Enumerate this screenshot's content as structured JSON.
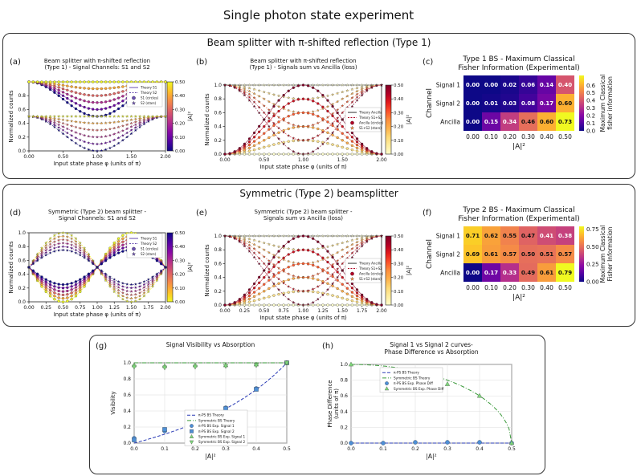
{
  "page_title": "Single photon state experiment",
  "sections": {
    "type1": "Beam splitter with π-shifted reflection (Type 1)",
    "type2": "Symmetric (Type 2) beamsplitter"
  },
  "chart_data": [
    {
      "id": "a",
      "panel_label": "(a)",
      "type": "scatter",
      "title": "Beam splitter with π-shifted reflection\n(Type 1) - Signal Channels: S1 and S2",
      "xlabel": "Input state phase φ (units of π)",
      "ylabel": "Normalized counts",
      "xlim": [
        0,
        2
      ],
      "ylim": [
        0,
        1
      ],
      "xticks": [
        "0.00",
        "0.50",
        "1.00",
        "1.50",
        "2.00"
      ],
      "yticks": [
        "0.0",
        "0.2",
        "0.4",
        "0.6",
        "0.8"
      ],
      "legend": [
        "Theory S1",
        "Theory S2",
        "S1 (circles)",
        "S2 (stars)"
      ],
      "colorbar": {
        "label": "|A|²",
        "ticks": [
          "0.00",
          "0.10",
          "0.20",
          "0.30",
          "0.40",
          "0.50"
        ]
      },
      "absorption_levels": [
        0,
        0.1,
        0.2,
        0.3,
        0.4,
        0.5
      ]
    },
    {
      "id": "b",
      "panel_label": "(b)",
      "type": "scatter",
      "title": "Beam splitter with π-shifted reflection\n(Type 1) - Signals sum vs Ancilla (loss)",
      "xlabel": "Input state phase φ (units of π)",
      "ylabel": "Normalized counts",
      "xlim": [
        0,
        2
      ],
      "ylim": [
        0,
        1
      ],
      "xticks": [
        "0.00",
        "0.50",
        "1.00",
        "1.50",
        "2.00"
      ],
      "yticks": [
        "0.0",
        "0.2",
        "0.4",
        "0.6",
        "0.8",
        "1.0"
      ],
      "legend": [
        "Theory Ancilla",
        "Theory S1+S2",
        "Ancilla (circles)",
        "S1+S2 (stars)"
      ],
      "colorbar": {
        "label": "|A|²",
        "ticks": [
          "0.00",
          "0.10",
          "0.20",
          "0.30",
          "0.40",
          "0.50"
        ]
      },
      "absorption_levels": [
        0,
        0.1,
        0.2,
        0.3,
        0.4,
        0.5
      ]
    },
    {
      "id": "c",
      "panel_label": "(c)",
      "type": "heatmap",
      "title": "Type 1 BS - Maximum Classical\nFisher Information (Experimental)",
      "xlabel": "|A|²",
      "ylabel": "Channel",
      "x": [
        "0.00",
        "0.10",
        "0.20",
        "0.30",
        "0.40",
        "0.50"
      ],
      "rows": [
        "Signal 1",
        "Signal 2",
        "Ancilla"
      ],
      "values": [
        [
          0.0,
          0.0,
          0.02,
          0.06,
          0.14,
          0.4
        ],
        [
          0.0,
          0.01,
          0.03,
          0.08,
          0.17,
          0.6
        ],
        [
          0.0,
          0.15,
          0.34,
          0.46,
          0.6,
          0.73
        ]
      ],
      "vmax": 0.73,
      "colorbar": {
        "label": "Maximum Classical\nfisher information",
        "ticks": [
          "0.0",
          "0.1",
          "0.2",
          "0.3",
          "0.4",
          "0.5",
          "0.6"
        ]
      }
    },
    {
      "id": "d",
      "panel_label": "(d)",
      "type": "scatter",
      "title": "Symmetric (Type 2) beam splitter -\nSignal Channels: S1 and S2",
      "xlabel": "Input state phase φ (units of π)",
      "ylabel": "Normalized counts",
      "xlim": [
        0,
        2
      ],
      "ylim": [
        0,
        1
      ],
      "xticks": [
        "0.00",
        "0.25",
        "0.50",
        "0.75",
        "1.00",
        "1.25",
        "1.50",
        "1.75",
        "2.00"
      ],
      "yticks": [
        "0.0",
        "0.2",
        "0.4",
        "0.6",
        "0.8",
        "1.0"
      ],
      "legend": [
        "Theory S1",
        "Theory S2",
        "S1 (circles)",
        "S2 (stars)"
      ],
      "colorbar": {
        "label": "|A|²",
        "ticks": [
          "0.00",
          "0.10",
          "0.20",
          "0.30",
          "0.40",
          "0.50"
        ]
      },
      "absorption_levels": [
        0,
        0.1,
        0.2,
        0.3,
        0.4,
        0.5
      ]
    },
    {
      "id": "e",
      "panel_label": "(e)",
      "type": "scatter",
      "title": "Symmetric (Type 2) beam splitter -\nSignals sum vs Ancilla (loss)",
      "xlabel": "Input state phase φ (units of π)",
      "ylabel": "Normalized counts",
      "xlim": [
        0,
        2
      ],
      "ylim": [
        0,
        1
      ],
      "xticks": [
        "0.00",
        "0.25",
        "0.50",
        "0.75",
        "1.00",
        "1.25",
        "1.50",
        "1.75",
        "2.00"
      ],
      "yticks": [
        "0.0",
        "0.2",
        "0.4",
        "0.6",
        "0.8",
        "1.0"
      ],
      "legend": [
        "Theory Ancilla",
        "Theory S1+S2",
        "Ancilla (circles)",
        "S1+S2 (stars)"
      ],
      "colorbar": {
        "label": "|A|²",
        "ticks": [
          "0.00",
          "0.10",
          "0.20",
          "0.30",
          "0.40",
          "0.50"
        ]
      },
      "absorption_levels": [
        0,
        0.1,
        0.2,
        0.3,
        0.4,
        0.5
      ]
    },
    {
      "id": "f",
      "panel_label": "(f)",
      "type": "heatmap",
      "title": "Type 2 BS - Maximum Classical\nFisher Information (Experimental)",
      "xlabel": "|A|²",
      "ylabel": "Channel",
      "x": [
        "0.00",
        "0.10",
        "0.20",
        "0.30",
        "0.40",
        "0.50"
      ],
      "rows": [
        "Signal 1",
        "Signal 2",
        "Ancilla"
      ],
      "values": [
        [
          0.71,
          0.62,
          0.55,
          0.47,
          0.41,
          0.38
        ],
        [
          0.69,
          0.61,
          0.57,
          0.5,
          0.51,
          0.57
        ],
        [
          0.0,
          0.17,
          0.33,
          0.49,
          0.61,
          0.79
        ]
      ],
      "vmax": 0.79,
      "colorbar": {
        "label": "Maximum Classical\nFisher Information",
        "ticks": [
          "0.00",
          "0.25",
          "0.50",
          "0.75"
        ]
      }
    },
    {
      "id": "g",
      "panel_label": "(g)",
      "type": "scatter",
      "title": "Signal Visibility vs Absorption",
      "xlabel": "|A|²",
      "ylabel": "Visibility",
      "xlim": [
        0,
        0.5
      ],
      "ylim": [
        0,
        1
      ],
      "xticks": [
        "0.0",
        "0.1",
        "0.2",
        "0.3",
        "0.4",
        "0.5"
      ],
      "yticks": [
        "0.0",
        "0.2",
        "0.4",
        "0.6",
        "0.8",
        "1.0"
      ],
      "x": [
        0.0,
        0.1,
        0.2,
        0.3,
        0.4,
        0.5
      ],
      "series": [
        {
          "name": "π-PS BS Exp. Signal 1",
          "values": [
            0.06,
            0.15,
            0.29,
            0.44,
            0.68,
            1.0
          ]
        },
        {
          "name": "π-PS BS Exp. Signal 2",
          "values": [
            0.04,
            0.17,
            0.3,
            0.43,
            0.67,
            1.0
          ]
        },
        {
          "name": "Symmetric BS Exp. Signal 1",
          "values": [
            0.97,
            0.96,
            0.97,
            0.97,
            0.98,
            1.0
          ]
        },
        {
          "name": "Symmetric BS Exp. Signal 2",
          "values": [
            0.95,
            0.94,
            0.95,
            0.96,
            0.97,
            1.0
          ]
        }
      ],
      "legend": [
        "π-PS BS Theory",
        "Symmetric BS Theory",
        "π-PS BS Exp. Signal 1",
        "π-PS BS Exp. Signal 2",
        "Symmetric BS Exp. Signal 1",
        "Symmetric BS Exp. Signal 2"
      ]
    },
    {
      "id": "h",
      "panel_label": "(h)",
      "type": "scatter",
      "title": "Signal 1 vs Signal 2 curves-\nPhase Difference vs Absorption",
      "xlabel": "|A|²",
      "ylabel": "Phase Difference\n(units of π)",
      "xlim": [
        0,
        0.5
      ],
      "ylim": [
        0,
        1
      ],
      "xticks": [
        "0.0",
        "0.1",
        "0.2",
        "0.3",
        "0.4",
        "0.5"
      ],
      "yticks": [
        "0.0",
        "0.2",
        "0.4",
        "0.6",
        "0.8",
        "1.0"
      ],
      "x": [
        0.0,
        0.1,
        0.2,
        0.3,
        0.4,
        0.5
      ],
      "series": [
        {
          "name": "π-PS BS Exp. Phase Diff",
          "values": [
            0.0,
            0.0,
            0.01,
            0.01,
            0.01,
            0.0
          ]
        },
        {
          "name": "Symmetric BS Exp. Phase Diff",
          "values": [
            1.0,
            0.93,
            0.86,
            0.75,
            0.6,
            0.0
          ]
        }
      ],
      "legend": [
        "π-PS BS Theory",
        "Symmetric BS Theory",
        "π-PS BS Exp. Phase Diff",
        "Symmetric BS Exp. Phase Diff"
      ]
    }
  ]
}
